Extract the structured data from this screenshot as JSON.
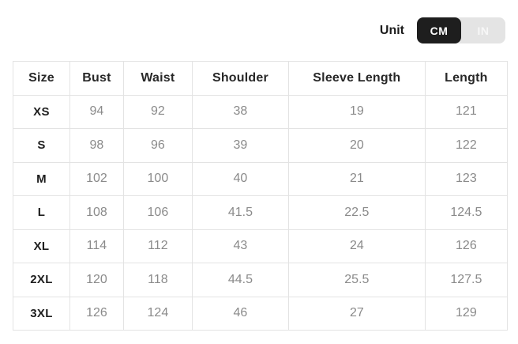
{
  "header": {
    "unit_label": "Unit",
    "units": [
      {
        "label": "CM",
        "selected": true
      },
      {
        "label": "IN",
        "selected": false
      }
    ]
  },
  "size_chart": {
    "columns": [
      "Size",
      "Bust",
      "Waist",
      "Shoulder",
      "Sleeve Length",
      "Length"
    ],
    "rows": [
      {
        "size": "XS",
        "values": [
          "94",
          "92",
          "38",
          "19",
          "121"
        ]
      },
      {
        "size": "S",
        "values": [
          "98",
          "96",
          "39",
          "20",
          "122"
        ]
      },
      {
        "size": "M",
        "values": [
          "102",
          "100",
          "40",
          "21",
          "123"
        ]
      },
      {
        "size": "L",
        "values": [
          "108",
          "106",
          "41.5",
          "22.5",
          "124.5"
        ]
      },
      {
        "size": "XL",
        "values": [
          "114",
          "112",
          "43",
          "24",
          "126"
        ]
      },
      {
        "size": "2XL",
        "values": [
          "120",
          "118",
          "44.5",
          "25.5",
          "127.5"
        ]
      },
      {
        "size": "3XL",
        "values": [
          "126",
          "124",
          "46",
          "27",
          "129"
        ]
      }
    ]
  },
  "colors": {
    "selected_unit_bg": "#1e1e1e",
    "selected_unit_text": "#ffffff",
    "unselected_unit_bg": "#e4e4e4",
    "unselected_unit_text": "#f7f7f7",
    "table_border": "#e3e3e3",
    "header_text": "#282828",
    "value_text": "#8a8a8a"
  }
}
